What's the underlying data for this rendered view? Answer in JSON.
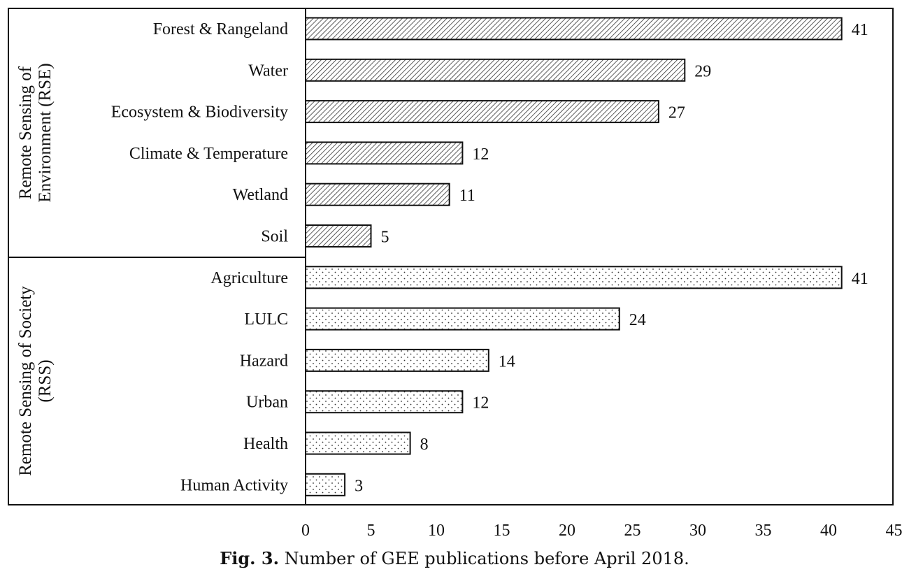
{
  "chart_data": {
    "type": "bar",
    "orientation": "horizontal",
    "xlim": [
      0,
      45
    ],
    "x_ticks": [
      "0",
      "5",
      "10",
      "15",
      "20",
      "25",
      "30",
      "35",
      "40",
      "45"
    ],
    "groups": [
      {
        "label_line1": "Remote Sensing of",
        "label_line2": "Environment (RSE)",
        "pattern": "diagonal-hatch",
        "categories": [
          "Forest & Rangeland",
          "Water",
          "Ecosystem & Biodiversity",
          "Climate & Temperature",
          "Wetland",
          "Soil"
        ],
        "values": [
          41,
          29,
          27,
          12,
          11,
          5
        ]
      },
      {
        "label_line1": "Remote Sensing of Society",
        "label_line2": "(RSS)",
        "pattern": "dots",
        "categories": [
          "Agriculture",
          "LULC",
          "Hazard",
          "Urban",
          "Health",
          "Human Activity"
        ],
        "values": [
          41,
          24,
          14,
          12,
          8,
          3
        ]
      }
    ],
    "grid": false,
    "legend": "none"
  },
  "caption": {
    "prefix": "Fig. 3.",
    "text": " Number of GEE publications before April 2018."
  }
}
